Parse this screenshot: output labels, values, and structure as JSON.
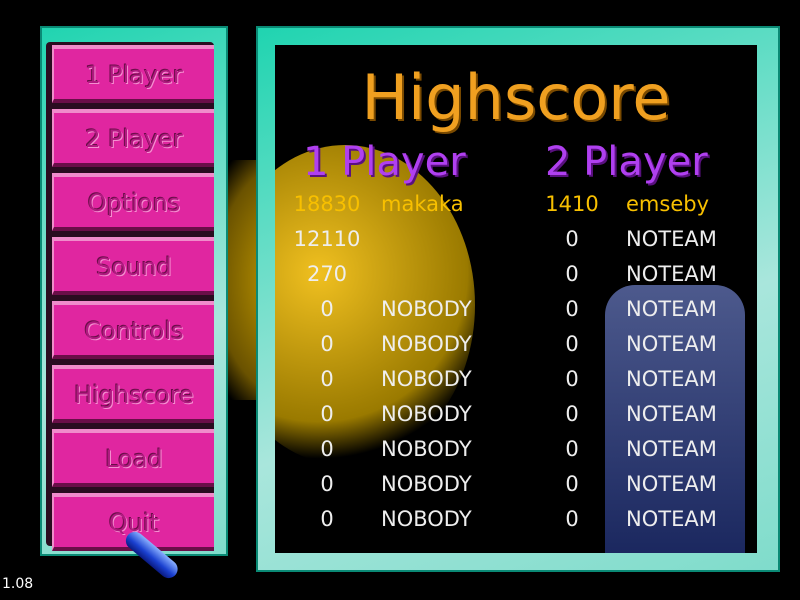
{
  "menu": {
    "items": [
      {
        "label": "1 Player"
      },
      {
        "label": "2 Player"
      },
      {
        "label": "Options"
      },
      {
        "label": "Sound"
      },
      {
        "label": "Controls"
      },
      {
        "label": "Highscore"
      },
      {
        "label": "Load"
      },
      {
        "label": "Quit"
      }
    ]
  },
  "highscore": {
    "title": "Highscore",
    "col1_label": "1 Player",
    "col2_label": "2 Player",
    "highlight_color": "#f8c000",
    "one_player": [
      {
        "score": "18830",
        "name": "makaka"
      },
      {
        "score": "12110",
        "name": ""
      },
      {
        "score": "270",
        "name": ""
      },
      {
        "score": "0",
        "name": "NOBODY"
      },
      {
        "score": "0",
        "name": "NOBODY"
      },
      {
        "score": "0",
        "name": "NOBODY"
      },
      {
        "score": "0",
        "name": "NOBODY"
      },
      {
        "score": "0",
        "name": "NOBODY"
      },
      {
        "score": "0",
        "name": "NOBODY"
      },
      {
        "score": "0",
        "name": "NOBODY"
      }
    ],
    "two_player": [
      {
        "score": "1410",
        "name": "emseby"
      },
      {
        "score": "0",
        "name": "NOTEAM"
      },
      {
        "score": "0",
        "name": "NOTEAM"
      },
      {
        "score": "0",
        "name": "NOTEAM"
      },
      {
        "score": "0",
        "name": "NOTEAM"
      },
      {
        "score": "0",
        "name": "NOTEAM"
      },
      {
        "score": "0",
        "name": "NOTEAM"
      },
      {
        "score": "0",
        "name": "NOTEAM"
      },
      {
        "score": "0",
        "name": "NOTEAM"
      },
      {
        "score": "0",
        "name": "NOTEAM"
      }
    ]
  },
  "version": "1.08"
}
